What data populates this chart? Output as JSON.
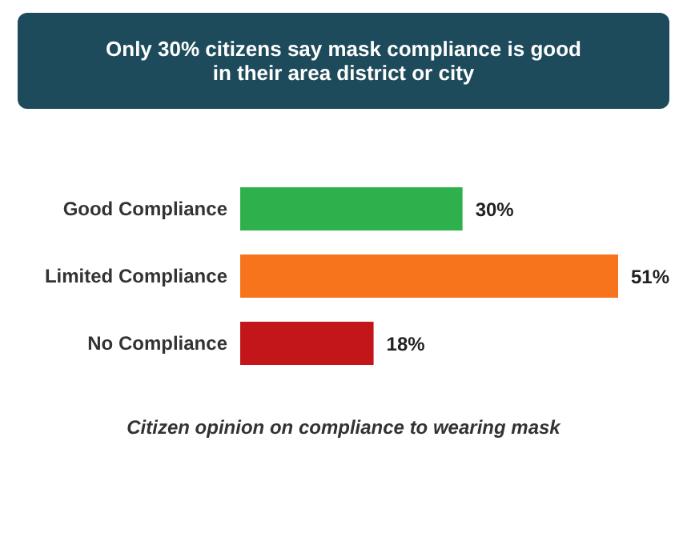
{
  "chart_data": {
    "type": "bar",
    "orientation": "horizontal",
    "title": "Only 30% citizens say mask compliance is good in their area district or city",
    "xlabel": "Citizen opinion on compliance to wearing mask",
    "categories": [
      "Good Compliance",
      "Limited Compliance",
      "No Compliance"
    ],
    "values": [
      30,
      51,
      18
    ],
    "colors": [
      "#2eb04c",
      "#f7741c",
      "#c3161b"
    ],
    "value_labels": [
      "30%",
      "51%",
      "18%"
    ]
  }
}
